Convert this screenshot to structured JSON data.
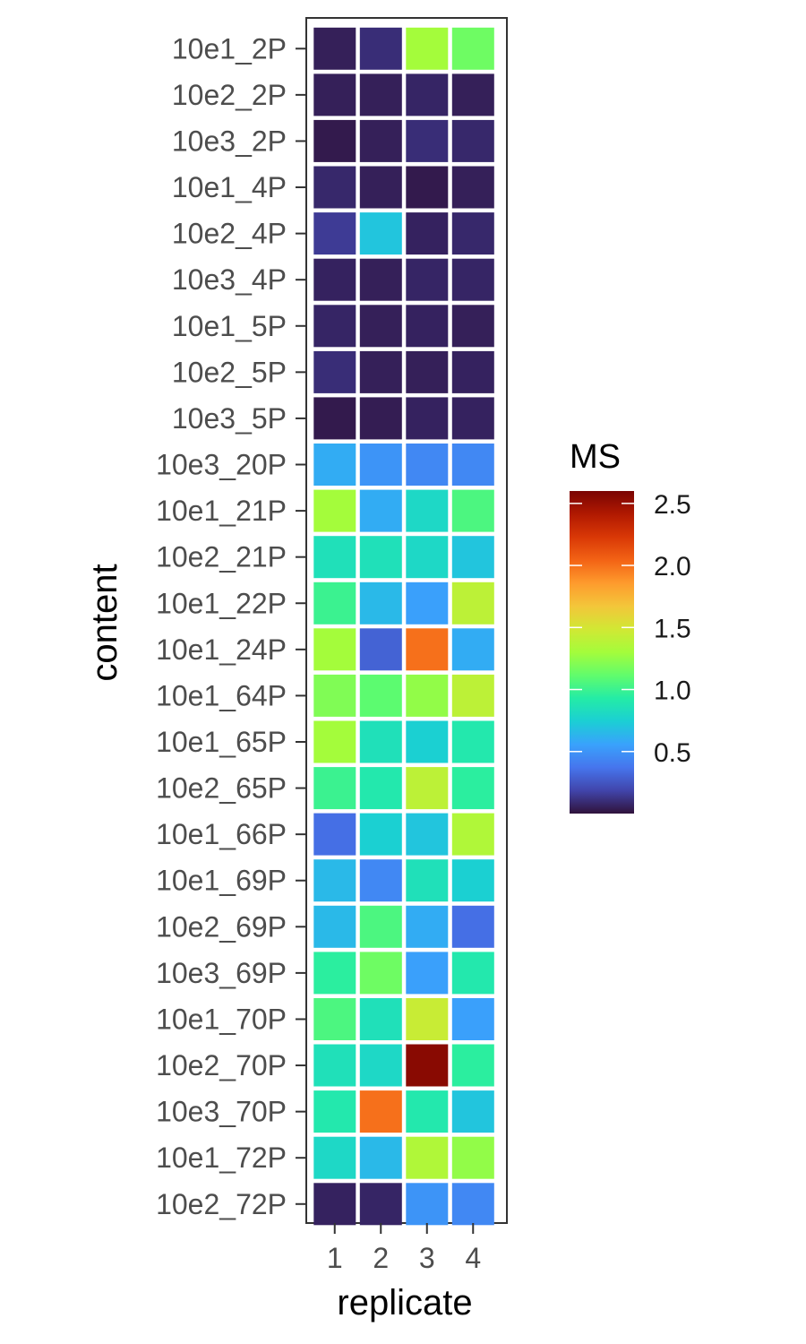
{
  "chart_data": {
    "type": "heatmap",
    "title": "",
    "xlabel": "replicate",
    "ylabel": "content",
    "x_categories": [
      "1",
      "2",
      "3",
      "4"
    ],
    "y_categories": [
      "10e1_2P",
      "10e2_2P",
      "10e3_2P",
      "10e1_4P",
      "10e2_4P",
      "10e3_4P",
      "10e1_5P",
      "10e2_5P",
      "10e3_5P",
      "10e3_20P",
      "10e1_21P",
      "10e2_21P",
      "10e1_22P",
      "10e1_24P",
      "10e1_64P",
      "10e1_65P",
      "10e2_65P",
      "10e1_66P",
      "10e1_69P",
      "10e2_69P",
      "10e3_69P",
      "10e1_70P",
      "10e2_70P",
      "10e3_70P",
      "10e1_72P",
      "10e2_72P"
    ],
    "values": [
      [
        0.05,
        0.1,
        1.3,
        1.15
      ],
      [
        0.05,
        0.05,
        0.07,
        0.05
      ],
      [
        0.03,
        0.05,
        0.1,
        0.08
      ],
      [
        0.08,
        0.05,
        0.03,
        0.05
      ],
      [
        0.15,
        0.7,
        0.06,
        0.08
      ],
      [
        0.06,
        0.05,
        0.07,
        0.07
      ],
      [
        0.07,
        0.05,
        0.06,
        0.05
      ],
      [
        0.1,
        0.05,
        0.05,
        0.06
      ],
      [
        0.03,
        0.04,
        0.06,
        0.06
      ],
      [
        0.6,
        0.5,
        0.45,
        0.45
      ],
      [
        1.3,
        0.6,
        0.8,
        1.05
      ],
      [
        0.85,
        0.85,
        0.8,
        0.7
      ],
      [
        1.0,
        0.65,
        0.55,
        1.4
      ],
      [
        1.3,
        0.3,
        2.0,
        0.6
      ],
      [
        1.2,
        1.1,
        1.25,
        1.4
      ],
      [
        1.3,
        0.85,
        0.75,
        0.9
      ],
      [
        1.0,
        0.9,
        1.4,
        0.95
      ],
      [
        0.35,
        0.75,
        0.7,
        1.35
      ],
      [
        0.65,
        0.45,
        0.85,
        0.75
      ],
      [
        0.65,
        1.05,
        0.6,
        0.35
      ],
      [
        0.95,
        1.15,
        0.55,
        0.9
      ],
      [
        1.05,
        0.85,
        1.45,
        0.55
      ],
      [
        0.85,
        0.8,
        2.55,
        0.95
      ],
      [
        0.9,
        2.0,
        0.9,
        0.7
      ],
      [
        0.8,
        0.65,
        1.35,
        1.25
      ],
      [
        0.06,
        0.07,
        0.5,
        0.45
      ]
    ],
    "legend": {
      "title": "MS",
      "placement": "right",
      "min": 0.0,
      "max": 2.6,
      "ticks": [
        0.5,
        1.0,
        1.5,
        2.0,
        2.5
      ],
      "tick_labels": [
        "0.5",
        "1.0",
        "1.5",
        "2.0",
        "2.5"
      ],
      "colormap": [
        "#30123b",
        "#4145ab",
        "#4675ed",
        "#39a2fc",
        "#1bcfd4",
        "#24eca6",
        "#61fc6c",
        "#a4fc3b",
        "#d1e834",
        "#f3c63a",
        "#fe9b2d",
        "#f36315",
        "#d93806",
        "#b11901",
        "#7a0403"
      ]
    },
    "grid": false
  }
}
